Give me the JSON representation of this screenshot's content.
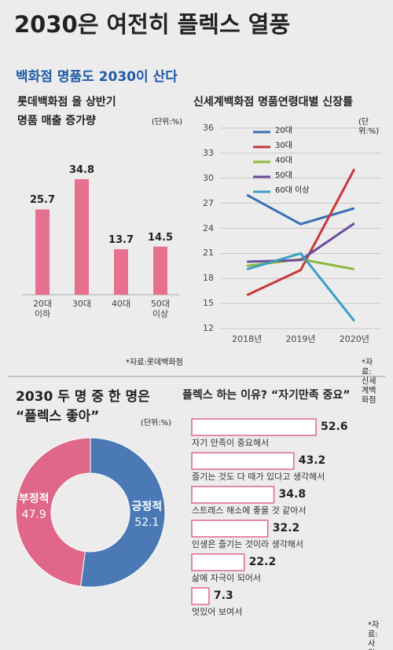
{
  "header": {
    "title": "2030은 여전히 플렉스 열풍",
    "subtitle": "백화점 명품도 2030이 산다"
  },
  "chart_data": [
    {
      "type": "bar",
      "title": [
        "롯데백화점 올 상반기",
        "명품 매출 증가량"
      ],
      "unit": "(단위:%)",
      "categories": [
        "20대\n이하",
        "30대",
        "40대",
        "50대\n이상"
      ],
      "values": [
        25.7,
        34.8,
        13.7,
        14.5
      ],
      "color": "#e8708f",
      "source": "*자료:롯데백화점"
    },
    {
      "type": "line",
      "title": [
        "신세계백화점 명품연령대별 신장률"
      ],
      "unit": "(단위:%)",
      "x": [
        "2018년",
        "2019년",
        "2020년"
      ],
      "ylim": [
        12,
        36
      ],
      "yticks": [
        12,
        15,
        18,
        21,
        24,
        27,
        30,
        33,
        36
      ],
      "grid": true,
      "series": [
        {
          "name": "20대",
          "color": "#3a6fb5",
          "values": [
            28,
            24.5,
            26.4
          ]
        },
        {
          "name": "30대",
          "color": "#c8383a",
          "values": [
            16,
            19,
            31.1
          ]
        },
        {
          "name": "40대",
          "color": "#8db83c",
          "values": [
            19.5,
            20.3,
            19.1
          ]
        },
        {
          "name": "50대",
          "color": "#6a4f9e",
          "values": [
            20,
            20.2,
            24.6
          ]
        },
        {
          "name": "60대 이상",
          "color": "#3aa0c4",
          "values": [
            19.1,
            21,
            12.9
          ]
        }
      ],
      "source": "*자료:신세계백화점"
    },
    {
      "type": "pie",
      "title": [
        "2030 두 명 중 한 명은",
        "“플렉스 좋아”"
      ],
      "unit": "(단위:%)",
      "categories": [
        "긍정적",
        "부정적"
      ],
      "values": [
        52.1,
        47.9
      ],
      "colors": [
        "#4a79b5",
        "#e0668a"
      ]
    },
    {
      "type": "hbar",
      "title": [
        "플렉스 하는 이유? “자기만족 중요”"
      ],
      "categories": [
        "자기 만족이 중요해서",
        "즐기는 것도 다 때가 있다고 생각해서",
        "스트레스 해소에 좋을 것 같아서",
        "인생은 즐기는 것이라 생각해서",
        "삶에 자극이 되어서",
        "멋있어 보여서"
      ],
      "values": [
        52.6,
        43.2,
        34.8,
        32.2,
        22.2,
        7.3
      ],
      "color": "#e0668a",
      "source": "*자료:사람인"
    }
  ]
}
